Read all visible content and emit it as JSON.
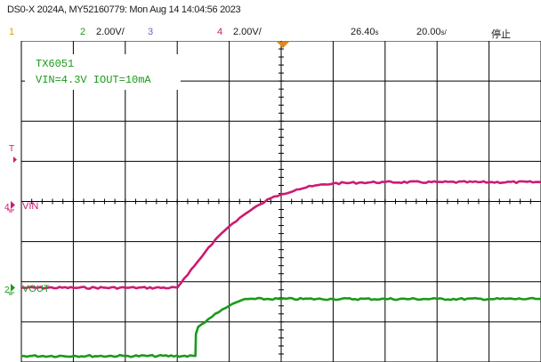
{
  "title": "DS0-X 2024A, MY52160779: Mon Aug 14 14:04:56 2023",
  "status_bar": {
    "ch1_num": "1",
    "ch2_num": "2",
    "ch2_scale": "2.00V/",
    "ch3_num": "3",
    "ch4_num": "4",
    "ch4_scale": "2.00V/",
    "time_offset": "26.40",
    "time_offset_unit": "s",
    "timebase": "20.00",
    "timebase_unit": "s/",
    "run_state": "停止"
  },
  "annotation": {
    "line1": "TX6051",
    "line2": "VIN=4.3V IOUT=10mA"
  },
  "markers": {
    "trigger_label": "T",
    "ch4_index": "4",
    "ch4_label": "VIN",
    "ch2_index": "2",
    "ch2_label": "VOUT"
  },
  "colors": {
    "background": "#ffffff",
    "grid": "#000000",
    "ch1": "#d8a000",
    "ch2": "#1a9a1a",
    "ch3": "#5a6ad0",
    "ch4": "#cc1b72",
    "trigger": "#e08a18"
  },
  "chart_data": {
    "type": "line",
    "x_divisions": 10,
    "y_divisions": 8,
    "x_range_div": [
      0,
      10
    ],
    "y_range_div": [
      0,
      8
    ],
    "series": [
      {
        "name": "VIN",
        "channel": 4,
        "color": "#cc1b72",
        "x": [
          0,
          1,
          2,
          3,
          3.2,
          3.4,
          3.6,
          3.8,
          4,
          4.2,
          4.4,
          4.6,
          4.8,
          5,
          5.3,
          5.6,
          6,
          6.5,
          7,
          8,
          9,
          10
        ],
        "y": [
          1.85,
          1.85,
          1.85,
          1.85,
          2.17,
          2.51,
          2.85,
          3.14,
          3.38,
          3.59,
          3.77,
          3.93,
          4.08,
          4.18,
          4.3,
          4.38,
          4.45,
          4.47,
          4.48,
          4.48,
          4.48,
          4.48
        ]
      },
      {
        "name": "VOUT",
        "channel": 2,
        "color": "#1a9a1a",
        "x": [
          0,
          1,
          2,
          3.35,
          3.36,
          3.4,
          3.6,
          3.8,
          4,
          4.2,
          4.3,
          4.5,
          5,
          6,
          7,
          8,
          9,
          10
        ],
        "y": [
          0.15,
          0.15,
          0.15,
          0.15,
          0.7,
          0.87,
          1.07,
          1.24,
          1.4,
          1.52,
          1.57,
          1.57,
          1.57,
          1.57,
          1.57,
          1.57,
          1.57,
          1.57
        ]
      }
    ]
  }
}
